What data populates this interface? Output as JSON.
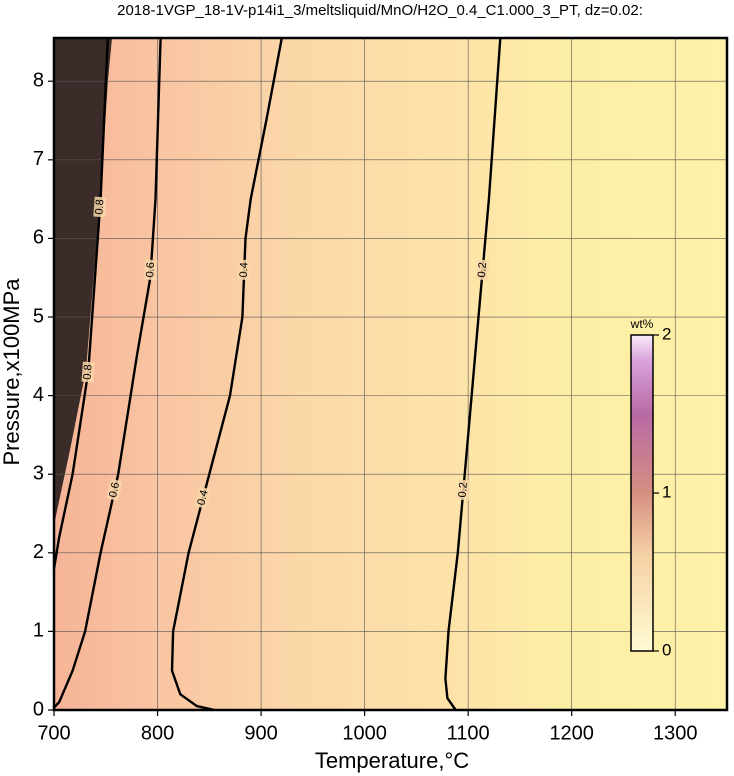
{
  "chart_data": {
    "type": "contour",
    "title": "2018-1VGP_18-1V-p14i1_3/meltsliquid/MnO/H2O_0.4_C1.000_3_PT, dz=0.02:",
    "x_label": "Temperature,°C",
    "y_label": "Pressure,x100MPa",
    "xlim": [
      700,
      1350
    ],
    "ylim": [
      0,
      8.55
    ],
    "xticks": [
      700,
      800,
      900,
      1000,
      1100,
      1200,
      1300
    ],
    "yticks": [
      0,
      1,
      2,
      3,
      4,
      5,
      6,
      7,
      8
    ],
    "grid": true,
    "contours": [
      {
        "level": 0.2,
        "x": [
          1131,
          1120,
          1110,
          1100,
          1090,
          1081,
          1078,
          1080,
          1088
        ],
        "y": [
          8.55,
          6.5,
          5,
          3.5,
          2,
          1,
          0.4,
          0.15,
          0
        ]
      },
      {
        "level": 0.4,
        "x": [
          920,
          905,
          890,
          885,
          882,
          870,
          850,
          830,
          815,
          814,
          822,
          838,
          855
        ],
        "y": [
          8.55,
          7.5,
          6.5,
          6,
          5,
          4,
          3,
          2,
          1,
          0.5,
          0.2,
          0.05,
          0
        ]
      },
      {
        "level": 0.6,
        "x": [
          803,
          798,
          793,
          780,
          762,
          745,
          730,
          718,
          705,
          700
        ],
        "y": [
          8.55,
          6.5,
          5.5,
          4.5,
          3,
          2,
          1,
          0.5,
          0.1,
          0.03
        ]
      },
      {
        "level": 0.8,
        "x": [
          752,
          745,
          733,
          718,
          705,
          700
        ],
        "y": [
          8.55,
          6.5,
          4.3,
          3,
          2.2,
          1.8
        ]
      }
    ],
    "colorbar": {
      "label": "wt%",
      "lim": [
        0,
        2
      ],
      "ticks": [
        0,
        1,
        2
      ]
    }
  }
}
